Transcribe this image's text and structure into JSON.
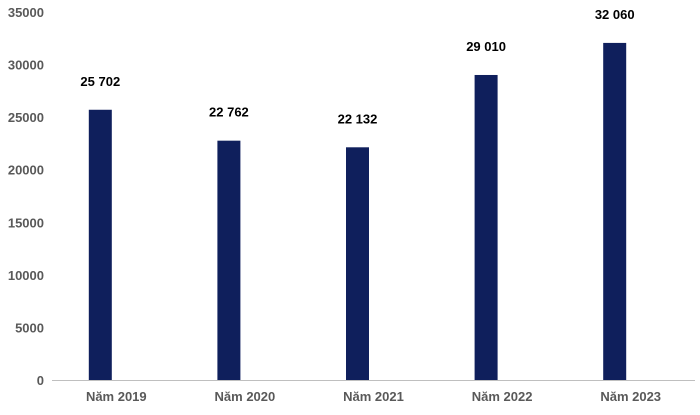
{
  "chart_data": {
    "type": "bar",
    "categories": [
      "Năm 2019",
      "Năm 2020",
      "Năm 2021",
      "Năm 2022",
      "Năm 2023"
    ],
    "values": [
      25702,
      22762,
      22132,
      29010,
      32060
    ],
    "data_labels": [
      "25 702",
      "22 762",
      "22 132",
      "29 010",
      "32 060"
    ],
    "title": "",
    "xlabel": "",
    "ylabel": "",
    "ylim": [
      0,
      35000
    ],
    "yticks": [
      0,
      5000,
      10000,
      15000,
      20000,
      25000,
      30000,
      35000
    ],
    "ytick_labels": [
      "0",
      "5000",
      "10000",
      "15000",
      "20000",
      "25000",
      "30000",
      "35000"
    ],
    "grid": false,
    "legend": "none",
    "bar_color": "#0f1f5c",
    "axis_color": "#bfbfbf",
    "tick_label_color": "#595959",
    "data_label_color": "#000000"
  }
}
